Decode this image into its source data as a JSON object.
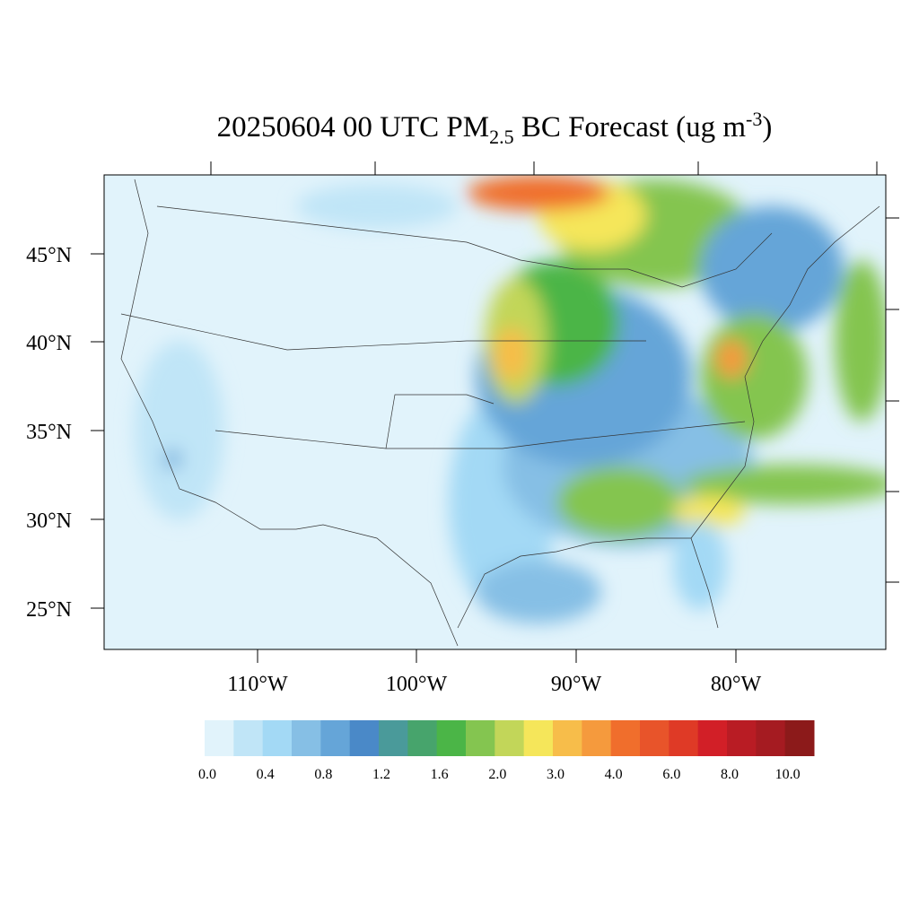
{
  "map": {
    "title": {
      "parts": [
        "20250604 00 UTC PM",
        "2.5",
        " BC Forecast (ug m",
        "-3",
        ")"
      ]
    },
    "lat_labels": [
      "45°N",
      "40°N",
      "35°N",
      "30°N",
      "25°N"
    ],
    "lon_labels": [
      "110°W",
      "100°W",
      "90°W",
      "80°W"
    ]
  },
  "colorbar": {
    "colors": [
      "#e1f3fb",
      "#c0e5f7",
      "#a3d9f5",
      "#86bfe5",
      "#65a5d8",
      "#4a89c8",
      "#4a9a9a",
      "#47a46c",
      "#4bb547",
      "#84c550",
      "#c2d659",
      "#f5e65a",
      "#f7bd4a",
      "#f59a3d",
      "#f06e2c",
      "#e8542a",
      "#df3a26",
      "#d21f27",
      "#b91c24",
      "#a51b21",
      "#8c1a1a"
    ],
    "labels": [
      "0.0",
      "0.4",
      "0.8",
      "1.2",
      "1.6",
      "2.0",
      "3.0",
      "4.0",
      "6.0",
      "8.0",
      "10.0"
    ]
  }
}
